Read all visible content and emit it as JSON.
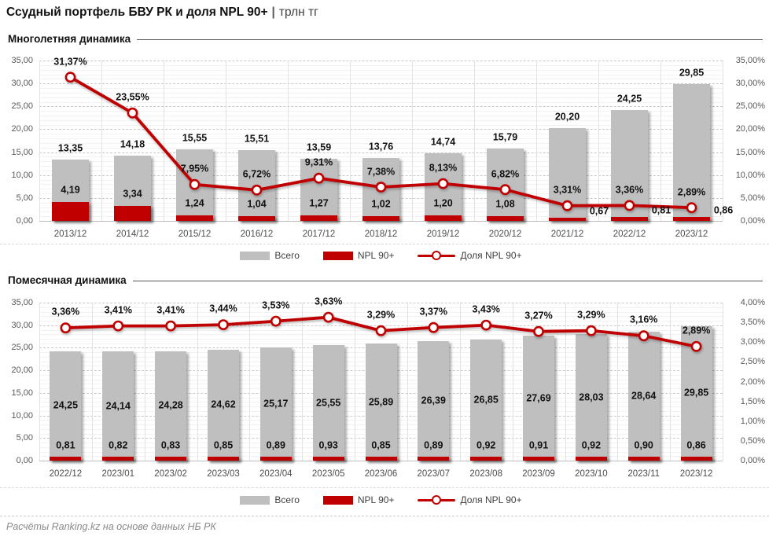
{
  "title": {
    "main": "Ссудный портфель БВУ РК и доля NPL 90+",
    "separator": "|",
    "units": "трлн тг"
  },
  "legend": {
    "total": "Всего",
    "npl": "NPL 90+",
    "share": "Доля NPL 90+"
  },
  "footer": {
    "source": "Расчёты Ranking.kz на основе данных НБ РК"
  },
  "colors": {
    "bar_gray": "#bfbfbf",
    "accent_red": "#c00000",
    "axis_text": "#595959",
    "label_text": "#111111"
  },
  "chart_data": [
    {
      "type": "bar",
      "subtype": "bar+line-combo",
      "section_title": "Многолетняя динамика",
      "categories": [
        "2013/12",
        "2014/12",
        "2015/12",
        "2016/12",
        "2017/12",
        "2018/12",
        "2019/12",
        "2020/12",
        "2021/12",
        "2022/12",
        "2023/12"
      ],
      "series": [
        {
          "name": "Всего",
          "type": "bar",
          "axis": "left",
          "color": "#bfbfbf",
          "values": [
            13.35,
            14.18,
            15.55,
            15.51,
            13.59,
            13.76,
            14.74,
            15.79,
            20.2,
            24.25,
            29.85
          ]
        },
        {
          "name": "NPL 90+",
          "type": "bar",
          "axis": "left",
          "color": "#c00000",
          "values": [
            4.19,
            3.34,
            1.24,
            1.04,
            1.27,
            1.02,
            1.2,
            1.08,
            0.67,
            0.81,
            0.86
          ]
        },
        {
          "name": "Доля NPL 90+",
          "type": "line",
          "axis": "right",
          "color": "#c00000",
          "values_pct": [
            31.37,
            23.55,
            7.95,
            6.72,
            9.31,
            7.38,
            8.13,
            6.82,
            3.31,
            3.36,
            2.89
          ]
        }
      ],
      "left_axis": {
        "min": 0,
        "max": 35,
        "step": 5
      },
      "right_axis": {
        "min": 0,
        "max": 35,
        "step": 5,
        "unit": "%"
      },
      "grid": {
        "minor_step": 1,
        "major": "dashed"
      },
      "legend_position": "bottom"
    },
    {
      "type": "bar",
      "subtype": "bar+line-combo",
      "section_title": "Помесячная динамика",
      "categories": [
        "2022/12",
        "2023/01",
        "2023/02",
        "2023/03",
        "2023/04",
        "2023/05",
        "2023/06",
        "2023/07",
        "2023/08",
        "2023/09",
        "2023/10",
        "2023/11",
        "2023/12"
      ],
      "series": [
        {
          "name": "Всего",
          "type": "bar",
          "axis": "left",
          "color": "#bfbfbf",
          "values": [
            24.25,
            24.14,
            24.28,
            24.62,
            25.17,
            25.55,
            25.89,
            26.39,
            26.85,
            27.69,
            28.03,
            28.64,
            29.85
          ]
        },
        {
          "name": "NPL 90+",
          "type": "bar",
          "axis": "left",
          "color": "#c00000",
          "values": [
            0.81,
            0.82,
            0.83,
            0.85,
            0.89,
            0.93,
            0.85,
            0.89,
            0.92,
            0.91,
            0.92,
            0.9,
            0.86
          ]
        },
        {
          "name": "Доля NPL 90+",
          "type": "line",
          "axis": "right",
          "color": "#c00000",
          "values_pct": [
            3.36,
            3.41,
            3.41,
            3.44,
            3.53,
            3.63,
            3.29,
            3.37,
            3.43,
            3.27,
            3.29,
            3.16,
            2.89
          ]
        }
      ],
      "left_axis": {
        "min": 0,
        "max": 35,
        "step": 5
      },
      "right_axis": {
        "min": 0,
        "max": 4,
        "step": 0.5,
        "unit": "%"
      },
      "grid": {
        "minor_step": 1,
        "major": "dashed"
      },
      "legend_position": "bottom"
    }
  ]
}
